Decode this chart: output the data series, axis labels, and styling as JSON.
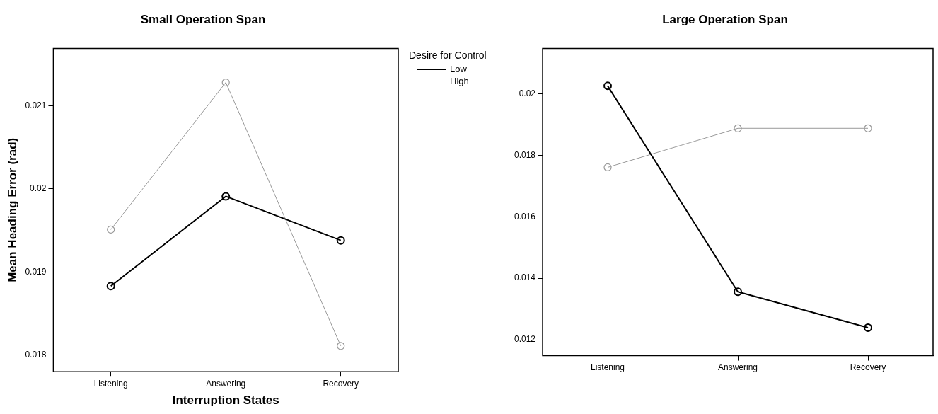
{
  "chart_data": [
    {
      "type": "line",
      "title": "Small Operation Span",
      "xlabel": "Interruption States",
      "ylabel": "Mean Heading Error (rad)",
      "categories": [
        "Listening",
        "Answering",
        "Recovery"
      ],
      "series": [
        {
          "name": "Low",
          "color": "#000000",
          "values": [
            0.01883,
            0.01991,
            0.01938
          ]
        },
        {
          "name": "High",
          "color": "#999999",
          "values": [
            0.01951,
            0.02128,
            0.01811
          ]
        }
      ],
      "ylim": [
        0.0178,
        0.02169
      ],
      "yticks": [
        0.018,
        0.019,
        0.02,
        0.021
      ],
      "grid": false,
      "legend": "right",
      "legend_title": "Desire for Control",
      "marker": "circle",
      "line_style": "solid"
    },
    {
      "type": "line",
      "title": "Large Operation Span",
      "categories": [
        "Listening",
        "Answering",
        "Recovery"
      ],
      "series": [
        {
          "color": "#000000",
          "values": [
            0.02026,
            0.01356,
            0.01239
          ]
        },
        {
          "color": "#999999",
          "values": [
            0.01761,
            0.01888,
            0.01888
          ]
        }
      ],
      "ylim": [
        0.01148,
        0.02148
      ],
      "yticks": [
        0.012,
        0.014,
        0.016,
        0.018,
        0.02
      ],
      "grid": false,
      "legend": false,
      "marker": "circle",
      "line_style": "solid"
    }
  ]
}
